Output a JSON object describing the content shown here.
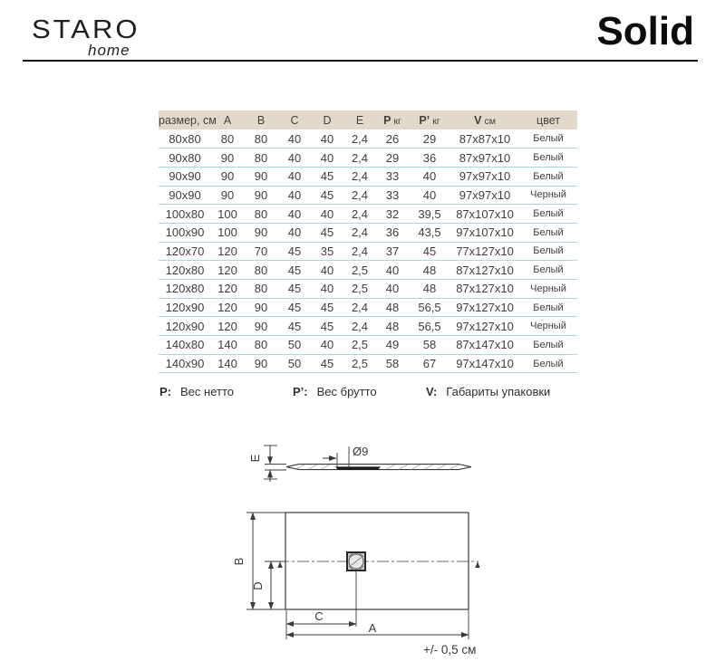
{
  "header": {
    "logo_primary": "STARO",
    "logo_secondary": "home",
    "title": "Solid"
  },
  "table": {
    "columns": [
      {
        "label": "размер, см",
        "suffix": ""
      },
      {
        "label": "A",
        "suffix": ""
      },
      {
        "label": "B",
        "suffix": ""
      },
      {
        "label": "C",
        "suffix": ""
      },
      {
        "label": "D",
        "suffix": ""
      },
      {
        "label": "E",
        "suffix": ""
      },
      {
        "label": "P",
        "suffix": "кг"
      },
      {
        "label": "P’",
        "suffix": "кг"
      },
      {
        "label": "V",
        "suffix": "см"
      },
      {
        "label": "цвет",
        "suffix": ""
      }
    ],
    "rows": [
      [
        "80x80",
        "80",
        "80",
        "40",
        "40",
        "2,4",
        "26",
        "29",
        "87x87x10",
        "Белый"
      ],
      [
        "90x80",
        "90",
        "80",
        "40",
        "40",
        "2,4",
        "29",
        "36",
        "87x97x10",
        "Белый"
      ],
      [
        "90x90",
        "90",
        "90",
        "40",
        "45",
        "2,4",
        "33",
        "40",
        "97x97x10",
        "Белый"
      ],
      [
        "90x90",
        "90",
        "90",
        "40",
        "45",
        "2,4",
        "33",
        "40",
        "97x97x10",
        "Черный"
      ],
      [
        "100x80",
        "100",
        "80",
        "40",
        "40",
        "2,4",
        "32",
        "39,5",
        "87x107x10",
        "Белый"
      ],
      [
        "100x90",
        "100",
        "90",
        "40",
        "45",
        "2,4",
        "36",
        "43,5",
        "97x107x10",
        "Белый"
      ],
      [
        "120x70",
        "120",
        "70",
        "45",
        "35",
        "2,4",
        "37",
        "45",
        "77x127x10",
        "Белый"
      ],
      [
        "120x80",
        "120",
        "80",
        "45",
        "40",
        "2,5",
        "40",
        "48",
        "87x127x10",
        "Белый"
      ],
      [
        "120x80",
        "120",
        "80",
        "45",
        "40",
        "2,5",
        "40",
        "48",
        "87x127x10",
        "Черный"
      ],
      [
        "120x90",
        "120",
        "90",
        "45",
        "45",
        "2,4",
        "48",
        "56,5",
        "97x127x10",
        "Белый"
      ],
      [
        "120x90",
        "120",
        "90",
        "45",
        "45",
        "2,4",
        "48",
        "56,5",
        "97x127x10",
        "Черный"
      ],
      [
        "140x80",
        "140",
        "80",
        "50",
        "40",
        "2,5",
        "49",
        "58",
        "87x147x10",
        "Белый"
      ],
      [
        "140x90",
        "140",
        "90",
        "50",
        "45",
        "2,5",
        "58",
        "67",
        "97x147x10",
        "Белый"
      ]
    ]
  },
  "legend": [
    {
      "symbol": "P:",
      "text": "Вес нетто"
    },
    {
      "symbol": "P’:",
      "text": "Вес брутто"
    },
    {
      "symbol": "V:",
      "text": "Габариты упаковки"
    }
  ],
  "diagram": {
    "side": {
      "thickness_label": "E",
      "drain_diameter_label": "Ø9"
    },
    "top": {
      "width_label": "A",
      "depth_label": "B",
      "drain_x_label": "C",
      "drain_y_label": "D"
    },
    "tolerance": "+/- 0,5 см"
  },
  "colors": {
    "table_header_bg": "#e2d9ca",
    "row_separator": "#a9d8e2",
    "text": "#3e3e3e",
    "line": "#3a3a3a"
  }
}
